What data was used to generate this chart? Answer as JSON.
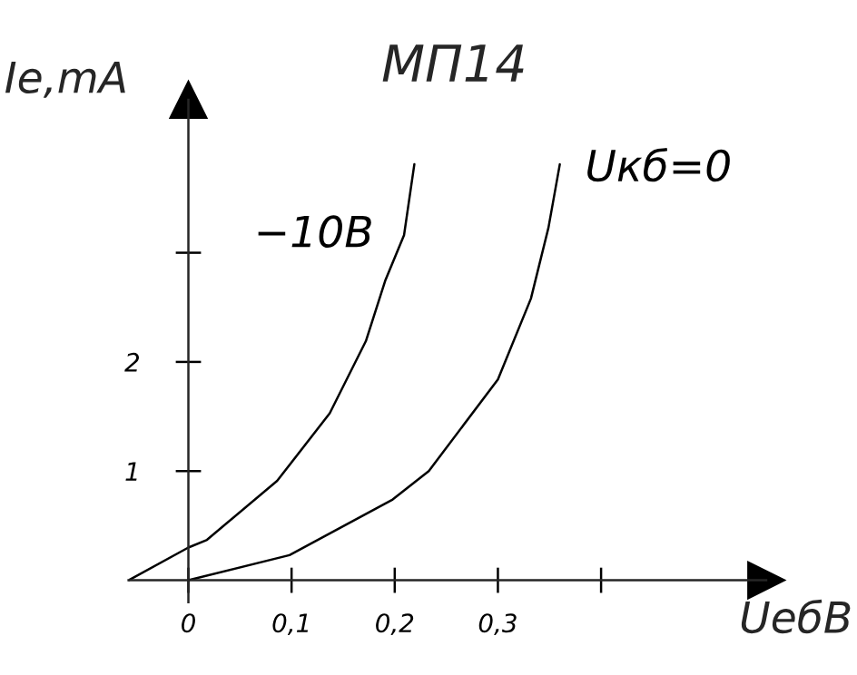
{
  "chart_data": {
    "type": "line",
    "title": "МП14",
    "xlabel": "UебВ",
    "ylabel": "Ie,mA",
    "series": [
      {
        "name": "−10В",
        "color": "#000000",
        "x": [
          -0.058,
          0.0,
          0.018,
          0.086,
          0.137,
          0.172,
          0.191,
          0.209,
          0.219
        ],
        "values": [
          0.0,
          0.3,
          0.37,
          0.91,
          1.53,
          2.19,
          2.75,
          3.16,
          3.81
        ]
      },
      {
        "name": "Uкб=0",
        "color": "#000000",
        "x": [
          0.0,
          0.098,
          0.198,
          0.233,
          0.3,
          0.332,
          0.349,
          0.36
        ],
        "values": [
          0.0,
          0.23,
          0.74,
          1.0,
          1.84,
          2.58,
          3.23,
          3.81
        ]
      }
    ],
    "xlim": [
      -0.058,
      0.56
    ],
    "ylim": [
      -0.2,
      4.4
    ],
    "xticks": [
      {
        "value": 0,
        "label": "0"
      },
      {
        "value": 0.1,
        "label": "0,1"
      },
      {
        "value": 0.2,
        "label": "0,2"
      },
      {
        "value": 0.3,
        "label": "0,3"
      },
      {
        "value": 0.4,
        "label": null
      }
    ],
    "yticks": [
      1,
      2,
      {
        "value": 3,
        "label": null
      }
    ],
    "grid": false,
    "marker": "none",
    "line_style": "solid"
  }
}
